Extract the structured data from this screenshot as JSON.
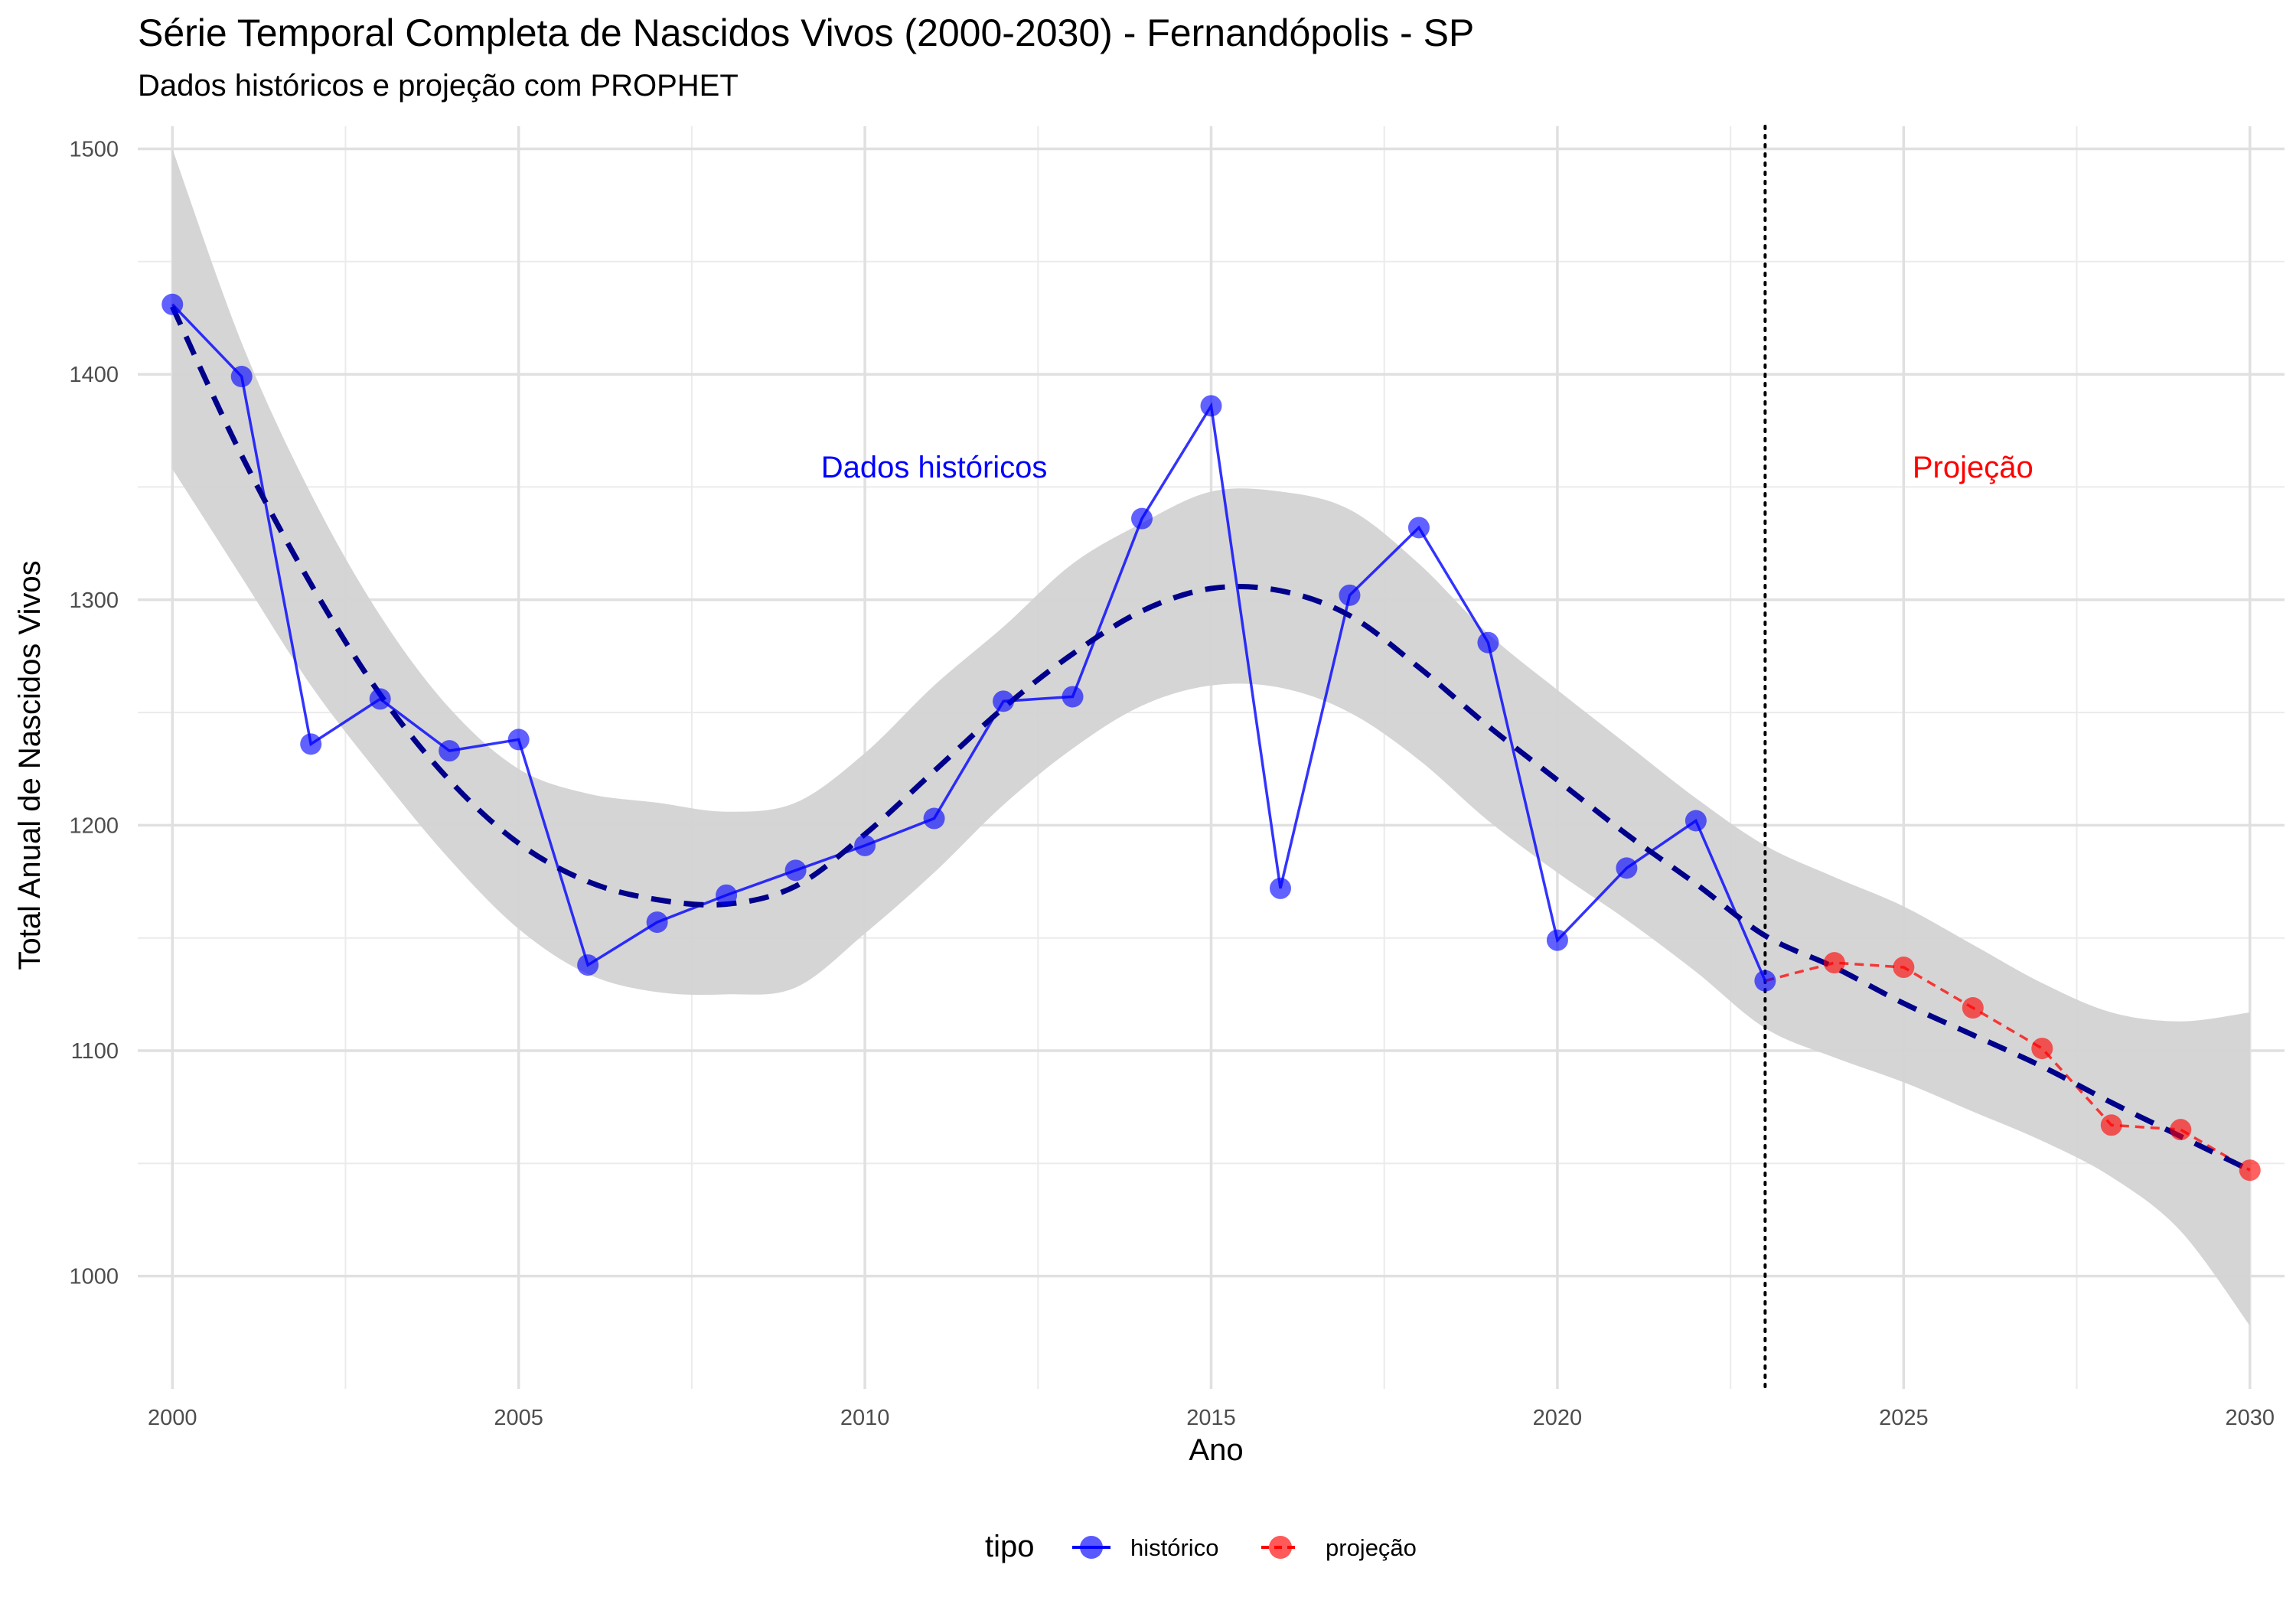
{
  "chart_data": {
    "type": "line",
    "title": "Série Temporal Completa de Nascidos Vivos (2000-2030) -  Fernandópolis - SP",
    "subtitle": "Dados históricos e projeção com PROPHET",
    "xlabel": "Ano",
    "ylabel": "Total Anual de Nascidos Vivos",
    "xlim": [
      1999.5,
      2030.5
    ],
    "ylim": [
      950,
      1510
    ],
    "x_ticks": [
      2000,
      2005,
      2010,
      2015,
      2020,
      2025,
      2030
    ],
    "x_tick_labels": [
      "2000",
      "2005",
      "2010",
      "2015",
      "2020",
      "2025",
      "2030"
    ],
    "y_ticks": [
      1000,
      1100,
      1200,
      1300,
      1400,
      1500
    ],
    "y_tick_labels": [
      "1000",
      "1100",
      "1200",
      "1300",
      "1400",
      "1500"
    ],
    "grid": true,
    "legend": {
      "title": "tipo",
      "placement": "bottom",
      "entries": [
        {
          "label": "histórico",
          "color": "#0000ff"
        },
        {
          "label": "projeção",
          "color": "#ff0000"
        }
      ]
    },
    "series": [
      {
        "name": "histórico",
        "color": "#0000ff",
        "style": "solid",
        "x": [
          2000,
          2001,
          2002,
          2003,
          2004,
          2005,
          2006,
          2007,
          2008,
          2009,
          2010,
          2011,
          2012,
          2013,
          2014,
          2015,
          2016,
          2017,
          2018,
          2019,
          2020,
          2021,
          2022,
          2023
        ],
        "y": [
          1431,
          1399,
          1236,
          1256,
          1233,
          1238,
          1138,
          1157,
          1169,
          1180,
          1191,
          1203,
          1255,
          1257,
          1336,
          1386,
          1172,
          1302,
          1332,
          1281,
          1149,
          1181,
          1202,
          1131
        ]
      },
      {
        "name": "projeção",
        "color": "#ff0000",
        "style": "dashed",
        "x": [
          2023,
          2024,
          2025,
          2026,
          2027,
          2028,
          2029,
          2030
        ],
        "y": [
          1131,
          1139,
          1137,
          1119,
          1101,
          1067,
          1065,
          1047
        ]
      }
    ],
    "trend": {
      "color": "#00008b",
      "style": "dashed",
      "x": [
        2000,
        2001,
        2002,
        2003,
        2004,
        2005,
        2006,
        2007,
        2008,
        2009,
        2010,
        2011,
        2012,
        2013,
        2014,
        2015,
        2016,
        2017,
        2018,
        2019,
        2020,
        2021,
        2022,
        2023,
        2024,
        2025,
        2026,
        2027,
        2028,
        2029,
        2030
      ],
      "y": [
        1430,
        1364,
        1307,
        1258,
        1220,
        1192,
        1175,
        1167,
        1165,
        1173,
        1196,
        1224,
        1252,
        1276,
        1295,
        1305,
        1304,
        1293,
        1270,
        1244,
        1220,
        1196,
        1174,
        1151,
        1137,
        1121,
        1107,
        1093,
        1077,
        1062,
        1047
      ]
    },
    "confidence_band": {
      "color": "#d3d3d3",
      "x": [
        2000,
        2001,
        2002,
        2003,
        2004,
        2005,
        2006,
        2007,
        2008,
        2009,
        2010,
        2011,
        2012,
        2013,
        2014,
        2015,
        2016,
        2017,
        2018,
        2019,
        2020,
        2021,
        2022,
        2023,
        2024,
        2025,
        2026,
        2027,
        2028,
        2029,
        2030
      ],
      "lower": [
        1358,
        1310,
        1262,
        1222,
        1185,
        1154,
        1134,
        1126,
        1125,
        1128,
        1152,
        1179,
        1209,
        1234,
        1253,
        1262,
        1261,
        1250,
        1229,
        1202,
        1179,
        1158,
        1135,
        1110,
        1097,
        1086,
        1073,
        1060,
        1044,
        1020,
        978
      ],
      "upper": [
        1500,
        1414,
        1347,
        1293,
        1252,
        1225,
        1214,
        1210,
        1206,
        1210,
        1232,
        1262,
        1288,
        1316,
        1334,
        1348,
        1348,
        1340,
        1316,
        1285,
        1260,
        1236,
        1212,
        1191,
        1177,
        1164,
        1147,
        1130,
        1117,
        1113,
        1117
      ]
    },
    "vline": {
      "x": 2023,
      "style": "dotted",
      "color": "#000000"
    },
    "annotations": [
      {
        "text": "Dados históricos",
        "x": 2011,
        "y": 1359,
        "color": "#0000ff"
      },
      {
        "text": "Projeção",
        "x": 2026,
        "y": 1359,
        "color": "#ff0000"
      }
    ]
  }
}
